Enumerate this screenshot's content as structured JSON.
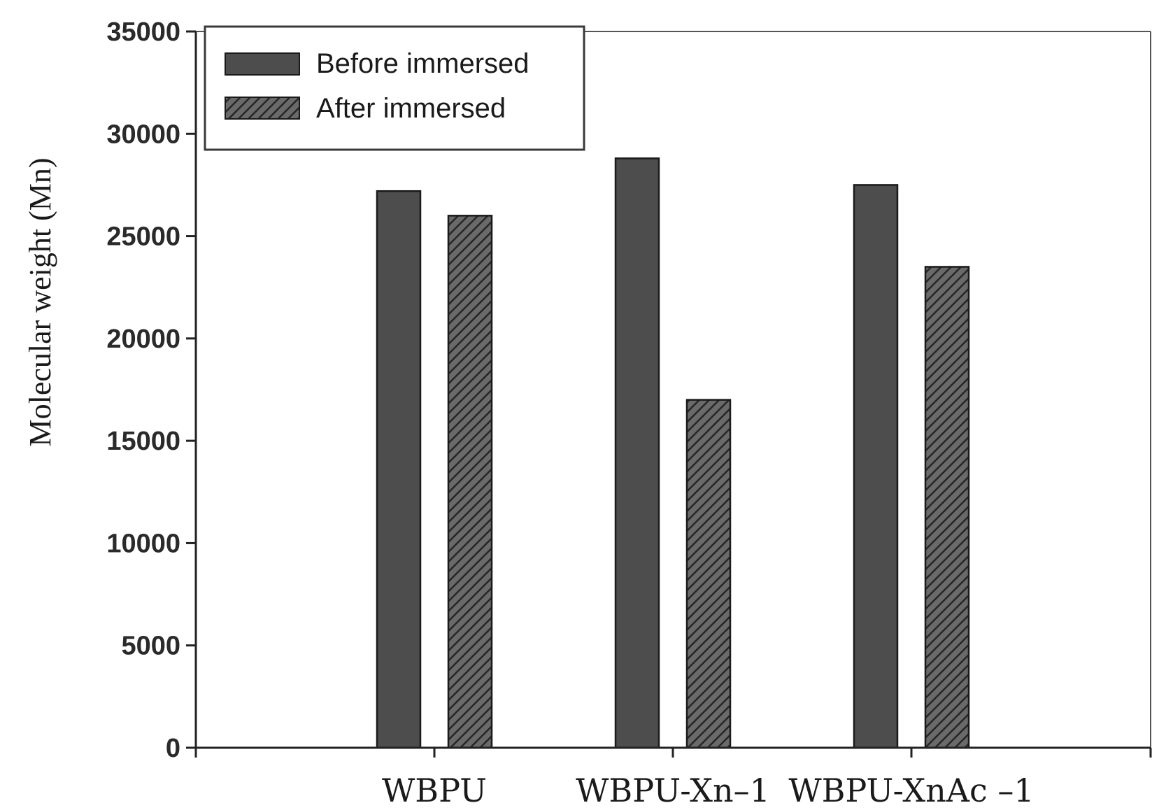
{
  "chart_data": {
    "type": "bar",
    "categories": [
      "WBPU",
      "WBPU-Xn–1",
      "WBPU-XnAc –1"
    ],
    "series": [
      {
        "name": "Before immersed",
        "values": [
          27200,
          28800,
          27500
        ],
        "color": "#4d4d4d",
        "pattern": "solid"
      },
      {
        "name": "After immersed",
        "values": [
          26000,
          17000,
          23500
        ],
        "color": "#4d4d4d",
        "pattern": "hatched"
      }
    ],
    "title": "",
    "xlabel": "",
    "ylabel": "Molecular weight (Mn)",
    "ylim": [
      0,
      35000
    ],
    "yticks": [
      0,
      5000,
      10000,
      15000,
      20000,
      25000,
      30000,
      35000
    ],
    "grid": false,
    "legend_position": "top-left"
  }
}
